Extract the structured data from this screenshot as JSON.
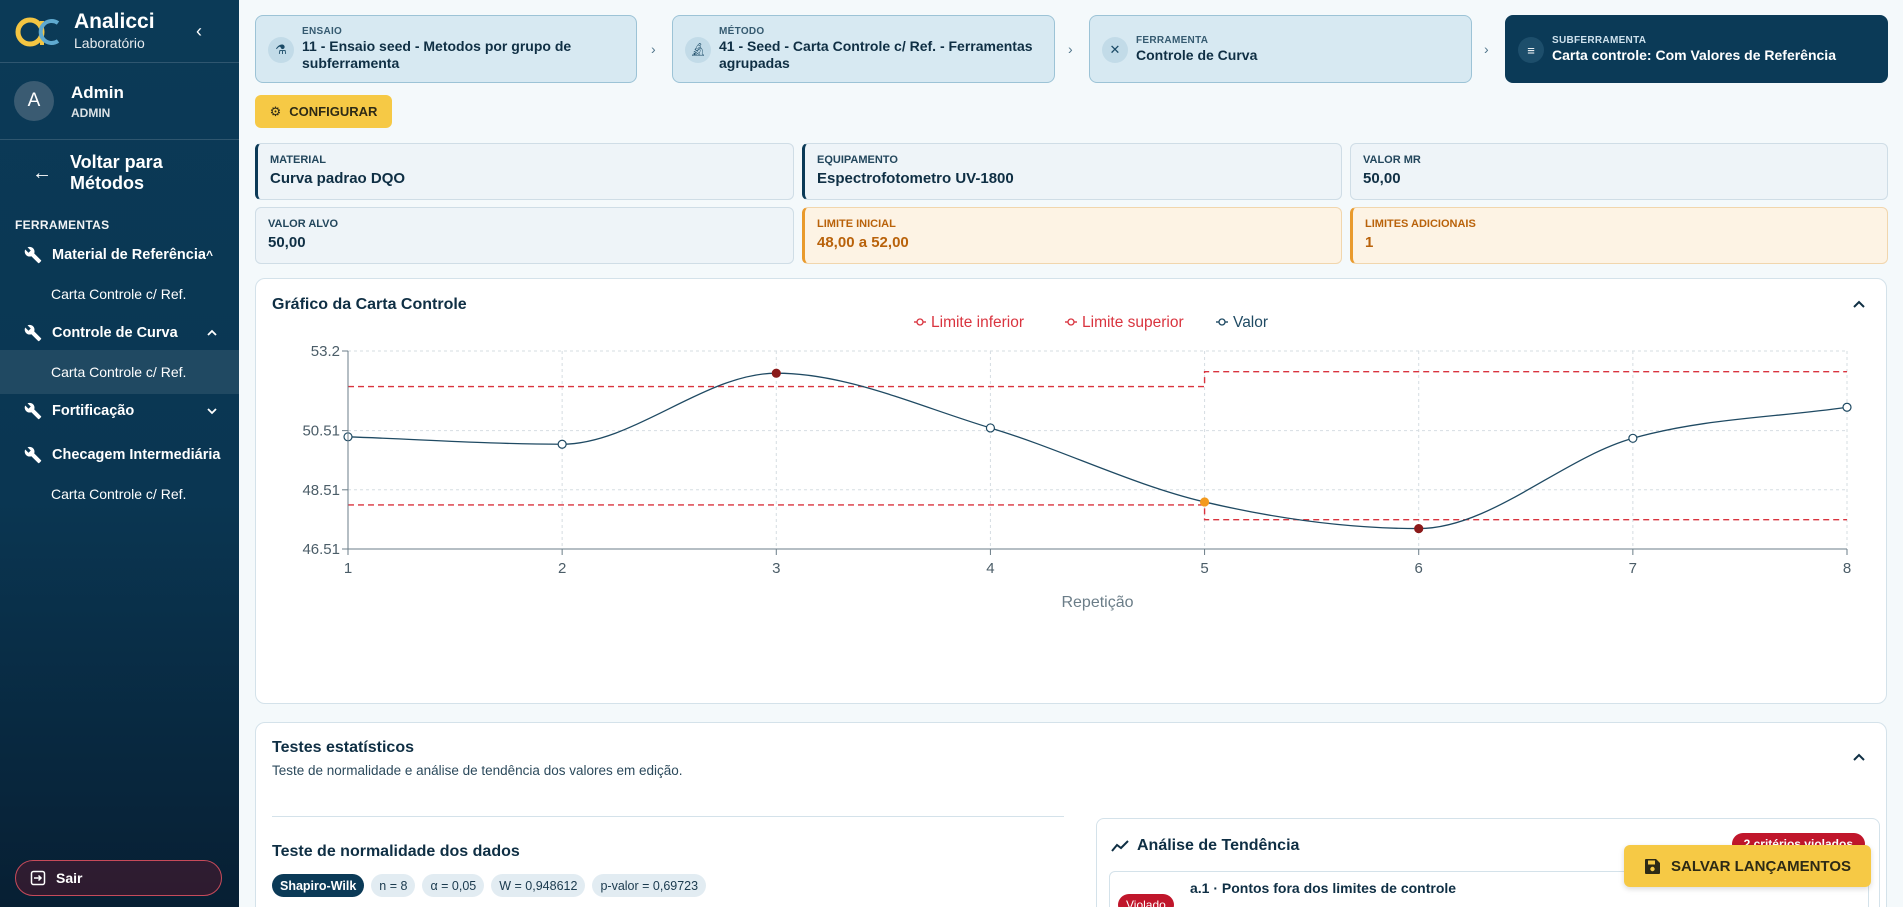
{
  "sidebar": {
    "brand_name": "Analicci",
    "brand_sub": "Laboratório",
    "user_initial": "A",
    "user_name": "Admin",
    "user_role": "ADMIN",
    "back_label": "Voltar para Métodos",
    "section_label": "FERRAMENTAS",
    "groups": [
      {
        "label": "Material de Referência",
        "items": [
          "Carta Controle c/ Ref."
        ]
      },
      {
        "label": "Controle de Curva",
        "items": [
          "Carta Controle c/ Ref."
        ]
      },
      {
        "label": "Fortificação",
        "items": []
      },
      {
        "label": "Checagem Intermediária",
        "items": [
          "Carta Controle c/ Ref."
        ]
      }
    ],
    "logout_label": "Sair"
  },
  "breadcrumb": [
    {
      "label": "ENSAIO",
      "value": "11 - Ensaio seed - Metodos por grupo de subferramenta"
    },
    {
      "label": "MÉTODO",
      "value": "41 - Seed - Carta Controle c/ Ref. - Ferramentas agrupadas"
    },
    {
      "label": "FERRAMENTA",
      "value": "Controle de Curva"
    },
    {
      "label": "SUBFERRAMENTA",
      "value": "Carta controle: Com Valores de Referência"
    }
  ],
  "config_label": "CONFIGURAR",
  "info": {
    "material": {
      "label": "MATERIAL",
      "value": "Curva padrao DQO"
    },
    "equipamento": {
      "label": "EQUIPAMENTO",
      "value": "Espectrofotometro UV-1800"
    },
    "valor_mr": {
      "label": "VALOR MR",
      "value": "50,00"
    },
    "valor_alvo": {
      "label": "VALOR ALVO",
      "value": "50,00"
    },
    "limite_inicial": {
      "label": "LIMITE INICIAL",
      "value": "48,00 a 52,00"
    },
    "limites_adicionais": {
      "label": "LIMITES ADICIONAIS",
      "value": "1"
    }
  },
  "chart_card_title": "Gráfico da Carta Controle",
  "chart_data": {
    "type": "line",
    "xlabel": "Repetição",
    "x": [
      1,
      2,
      3,
      4,
      5,
      6,
      7,
      8
    ],
    "ylim": [
      46.51,
      53.2
    ],
    "yticks": [
      "53.2",
      "50.51",
      "48.51",
      "46.51"
    ],
    "ytick_values": [
      53.2,
      50.51,
      48.51,
      46.51
    ],
    "grid": true,
    "legend_position": "top-center",
    "series": [
      {
        "name": "Limite inferior",
        "color": "#d9343f",
        "step": true,
        "segments": [
          {
            "x": [
              1,
              5
            ],
            "y": 48.0
          },
          {
            "x": [
              5,
              8
            ],
            "y": 47.5
          }
        ]
      },
      {
        "name": "Limite superior",
        "color": "#d9343f",
        "step": true,
        "segments": [
          {
            "x": [
              1,
              5
            ],
            "y": 52.0
          },
          {
            "x": [
              5,
              8
            ],
            "y": 52.5
          }
        ]
      },
      {
        "name": "Valor",
        "color": "#1f4a63",
        "values": [
          50.3,
          50.05,
          52.45,
          50.6,
          48.1,
          47.2,
          50.25,
          51.3
        ],
        "point_colors": [
          "#ffffff",
          "#ffffff",
          "#8b1a1a",
          "#ffffff",
          "#f39a1e",
          "#8b1a1a",
          "#ffffff",
          "#ffffff"
        ]
      }
    ]
  },
  "stats": {
    "title": "Testes estatísticos",
    "subtitle": "Teste de normalidade e análise de tendência dos valores em edição.",
    "normal_title": "Teste de normalidade dos dados",
    "chips": [
      "Shapiro-Wilk",
      "n = 8",
      "α = 0,05",
      "W = 0,948612",
      "p-valor = 0,69723"
    ],
    "trend_title": "Análise de Tendência",
    "trend_badge": "2 critérios violados",
    "trend_item_status": "Violado",
    "trend_item_text": "a.1 · Pontos fora dos limites de controle"
  },
  "save_label": "SALVAR LANÇAMENTOS"
}
